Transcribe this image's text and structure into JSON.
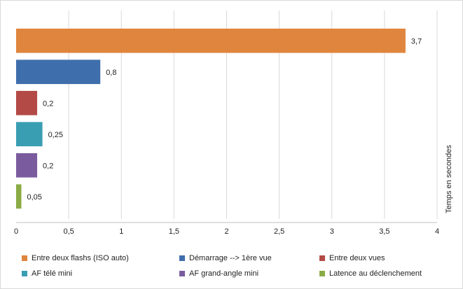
{
  "chart_data": {
    "type": "bar",
    "orientation": "horizontal",
    "categories": [
      "Entre deux flashs (ISO auto)",
      "Démarrage --> 1ère vue",
      "Entre deux vues",
      "AF télé mini",
      "AF grand-angle mini",
      "Latence au déclenchement"
    ],
    "values": [
      3.7,
      0.8,
      0.2,
      0.25,
      0.2,
      0.05
    ],
    "data_labels": [
      "3,7",
      "0,8",
      "0,2",
      "0,25",
      "0,2",
      "0,05"
    ],
    "colors": [
      "#e0853d",
      "#3f6eac",
      "#b34a46",
      "#3a9eb3",
      "#7a5c9e",
      "#8aab45"
    ],
    "xlim": [
      0,
      4
    ],
    "x_ticks": [
      0,
      0.5,
      1,
      1.5,
      2,
      2.5,
      3,
      3.5,
      4
    ],
    "x_tick_labels": [
      "0",
      "0,5",
      "1",
      "1,5",
      "2",
      "2,5",
      "3",
      "3,5",
      "4"
    ],
    "value_axis_title": "Temps en secondes",
    "grid": true,
    "legend_position": "bottom"
  }
}
